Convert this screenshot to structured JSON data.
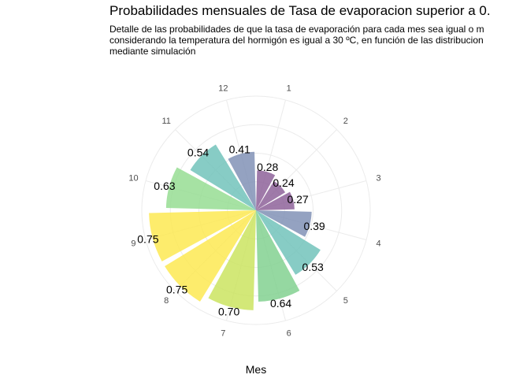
{
  "chart_data": {
    "type": "bar",
    "coord": "polar",
    "title": "Probabilidades mensuales de Tasa de evaporacion superior a 0.",
    "subtitle_lines": [
      "Detalle de las probabilidades de que la tasa de evaporación para cada mes sea igual o m",
      "considerando la temperatura del hormigón es igual a 30 ºC, en función de las distribucion",
      "mediante simulación"
    ],
    "xlabel": "Mes",
    "ylabel": "",
    "ylim": [
      0,
      0.8
    ],
    "grid": true,
    "categories": [
      "1",
      "2",
      "3",
      "4",
      "5",
      "6",
      "7",
      "8",
      "9",
      "10",
      "11",
      "12"
    ],
    "values": [
      0.28,
      0.24,
      0.27,
      0.39,
      0.53,
      0.64,
      0.7,
      0.75,
      0.75,
      0.63,
      0.54,
      0.41
    ],
    "labels": [
      "0.28",
      "0.24",
      "0.27",
      "0.39",
      "0.53",
      "0.64",
      "0.70",
      "0.75",
      "0.75",
      "0.63",
      "0.54",
      "0.41"
    ],
    "colors": [
      "#8a5d96",
      "#8a5d96",
      "#8a5d96",
      "#7d8eb3",
      "#6cc1b8",
      "#7ed08c",
      "#c9e35a",
      "#fde84c",
      "#fde84c",
      "#93dc8f",
      "#6cc1b8",
      "#7d8eb3"
    ]
  }
}
